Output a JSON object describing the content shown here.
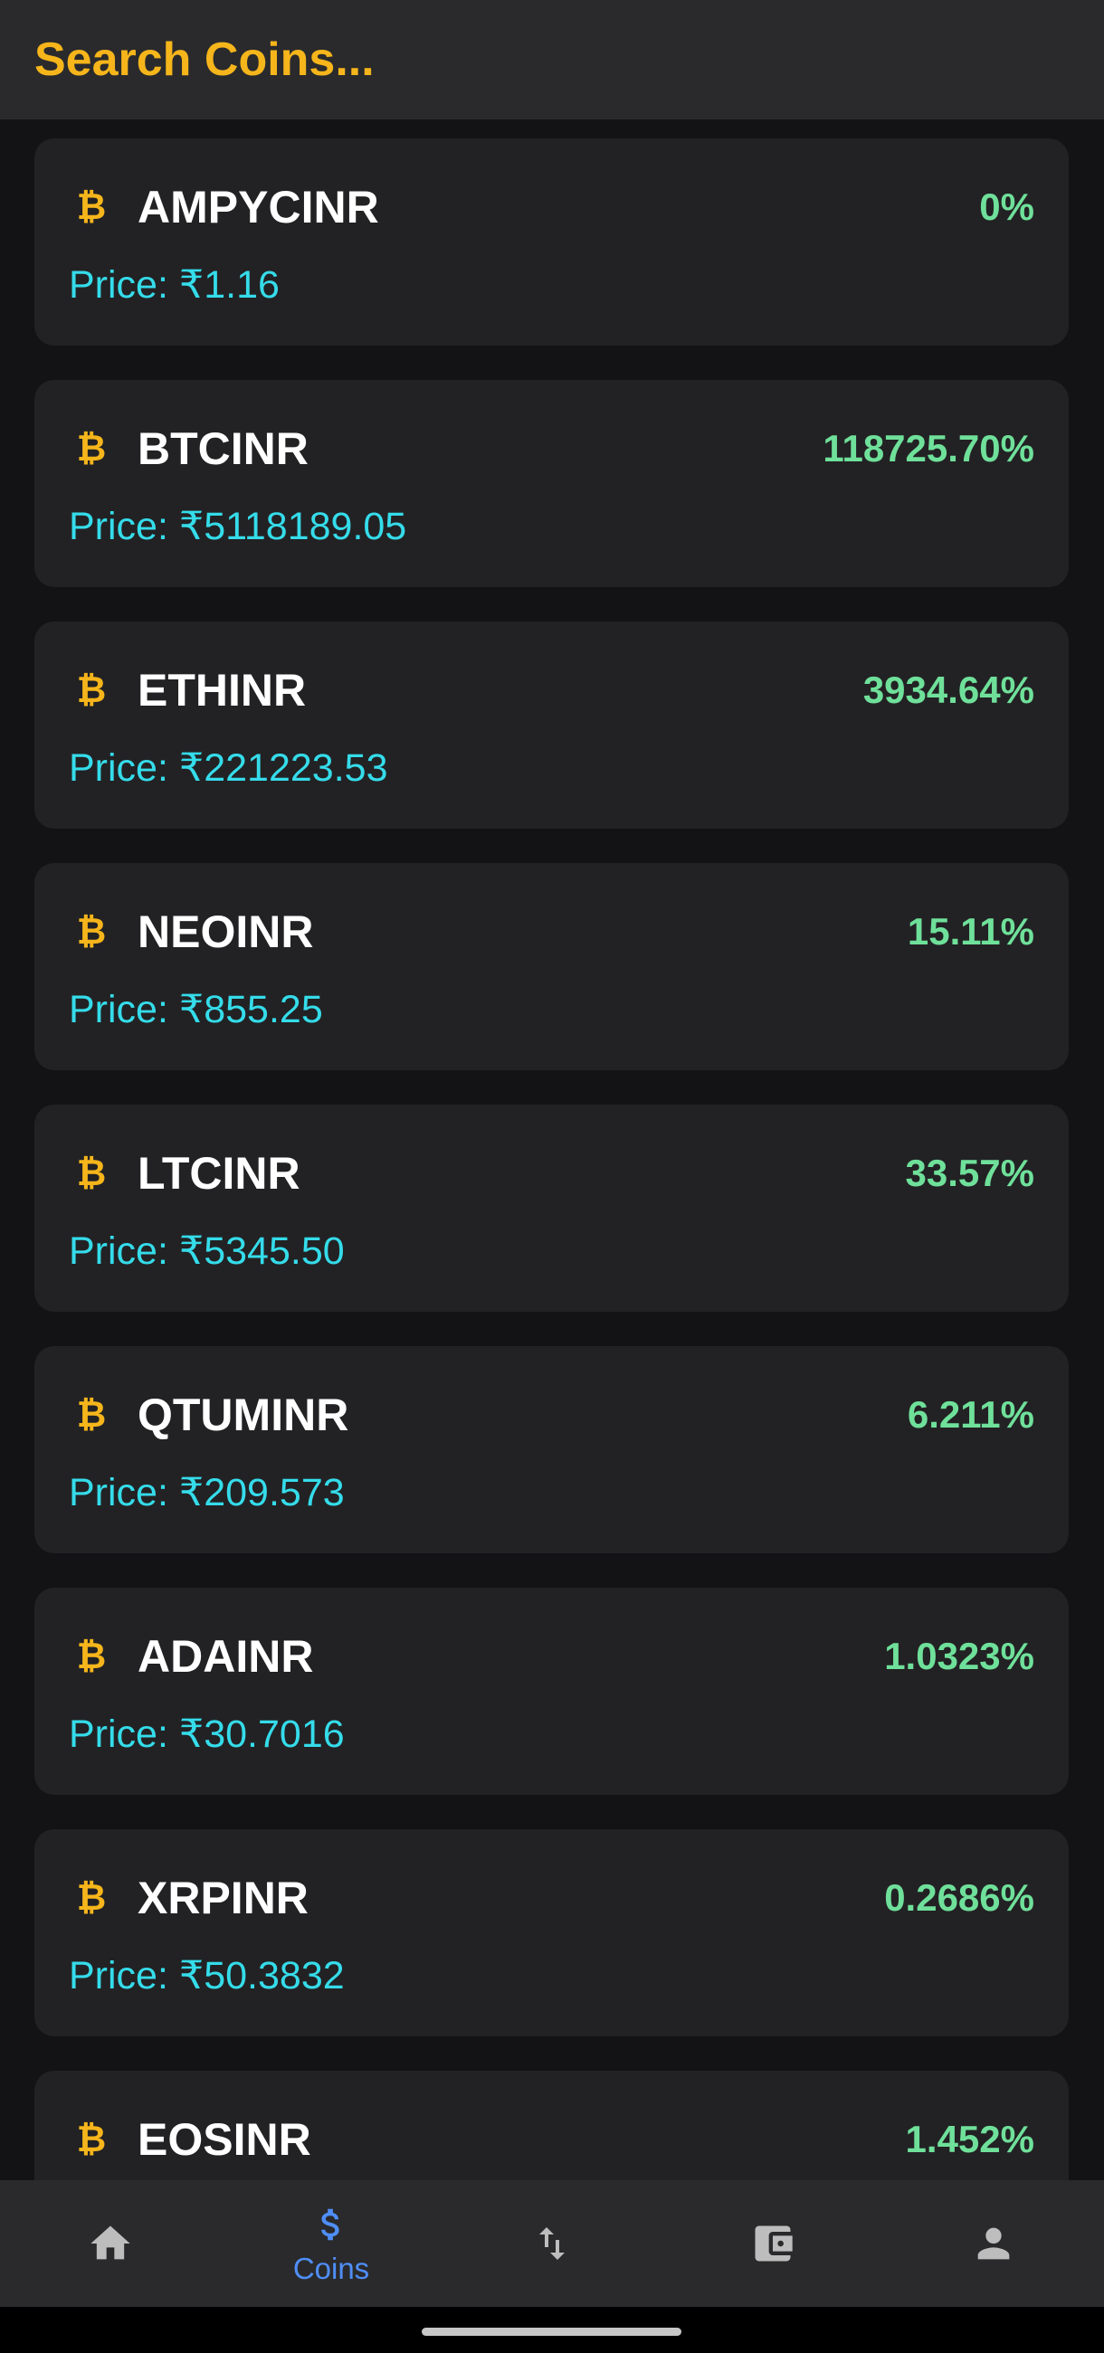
{
  "search": {
    "placeholder": "Search Coins...",
    "value": ""
  },
  "colors": {
    "accent": "#f5b51b",
    "change_positive": "#6fe09a",
    "price": "#35dcea",
    "nav_active": "#4f8ef7",
    "card_bg": "#222224",
    "page_bg": "#131316"
  },
  "coins": [
    {
      "icon": "bitcoin-icon",
      "name": "AMPYCINR",
      "change": "0%",
      "price_prefix": "Price: ",
      "price": "₹1.16"
    },
    {
      "icon": "bitcoin-icon",
      "name": "BTCINR",
      "change": "118725.70%",
      "price_prefix": "Price: ",
      "price": "₹5118189.05"
    },
    {
      "icon": "bitcoin-icon",
      "name": "ETHINR",
      "change": "3934.64%",
      "price_prefix": "Price: ",
      "price": "₹221223.53"
    },
    {
      "icon": "bitcoin-icon",
      "name": "NEOINR",
      "change": "15.11%",
      "price_prefix": "Price: ",
      "price": "₹855.25"
    },
    {
      "icon": "bitcoin-icon",
      "name": "LTCINR",
      "change": "33.57%",
      "price_prefix": "Price: ",
      "price": "₹5345.50"
    },
    {
      "icon": "bitcoin-icon",
      "name": "QTUMINR",
      "change": "6.211%",
      "price_prefix": "Price: ",
      "price": "₹209.573"
    },
    {
      "icon": "bitcoin-icon",
      "name": "ADAINR",
      "change": "1.0323%",
      "price_prefix": "Price: ",
      "price": "₹30.7016"
    },
    {
      "icon": "bitcoin-icon",
      "name": "XRPINR",
      "change": "0.2686%",
      "price_prefix": "Price: ",
      "price": "₹50.3832"
    },
    {
      "icon": "bitcoin-icon",
      "name": "EOSINR",
      "change": "1.452%",
      "price_prefix": "",
      "price": ""
    }
  ],
  "bottom_nav": {
    "items": [
      {
        "icon": "home-icon",
        "label": "",
        "active": false
      },
      {
        "icon": "dollar-icon",
        "label": "Coins",
        "active": true
      },
      {
        "icon": "swap-arrows-icon",
        "label": "",
        "active": false
      },
      {
        "icon": "wallet-icon",
        "label": "",
        "active": false
      },
      {
        "icon": "person-icon",
        "label": "",
        "active": false
      }
    ]
  }
}
